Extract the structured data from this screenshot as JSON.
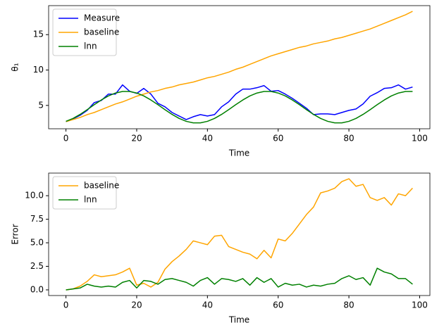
{
  "chart_data": [
    {
      "type": "line",
      "ylabel": "θ₁",
      "xlabel": "Time",
      "x": [
        0,
        2,
        4,
        6,
        8,
        10,
        12,
        14,
        16,
        18,
        20,
        22,
        24,
        26,
        28,
        30,
        32,
        34,
        36,
        38,
        40,
        42,
        44,
        46,
        48,
        50,
        52,
        54,
        56,
        58,
        60,
        62,
        64,
        66,
        68,
        70,
        72,
        74,
        76,
        78,
        80,
        82,
        84,
        86,
        88,
        90,
        92,
        94,
        96,
        98
      ],
      "series": [
        {
          "name": "Measure",
          "color": "#0000ff",
          "values": [
            2.7,
            3.1,
            3.6,
            4.3,
            5.4,
            5.7,
            6.6,
            6.6,
            7.9,
            7.0,
            6.7,
            7.4,
            6.6,
            5.3,
            4.8,
            4.0,
            3.5,
            3.0,
            3.4,
            3.7,
            3.5,
            3.7,
            4.8,
            5.5,
            6.6,
            7.3,
            7.3,
            7.5,
            7.8,
            7.0,
            7.1,
            6.6,
            6.0,
            5.3,
            4.6,
            3.7,
            3.8,
            3.8,
            3.7,
            4.0,
            4.3,
            4.5,
            5.2,
            6.3,
            6.8,
            7.4,
            7.5,
            7.9,
            7.3,
            7.6
          ]
        },
        {
          "name": "baseline",
          "color": "#ffa500",
          "values": [
            2.7,
            3.0,
            3.3,
            3.7,
            4.0,
            4.4,
            4.8,
            5.2,
            5.5,
            5.9,
            6.3,
            6.6,
            6.9,
            7.1,
            7.4,
            7.6,
            7.9,
            8.1,
            8.3,
            8.6,
            8.9,
            9.1,
            9.4,
            9.7,
            10.1,
            10.4,
            10.8,
            11.2,
            11.6,
            12.0,
            12.3,
            12.6,
            12.9,
            13.2,
            13.4,
            13.7,
            13.9,
            14.1,
            14.4,
            14.6,
            14.9,
            15.2,
            15.5,
            15.8,
            16.2,
            16.6,
            17.0,
            17.4,
            17.8,
            18.3
          ]
        },
        {
          "name": "lnn",
          "color": "#008000",
          "values": [
            2.75,
            3.16,
            3.73,
            4.4,
            5.1,
            5.77,
            6.34,
            6.75,
            6.97,
            6.97,
            6.75,
            6.34,
            5.77,
            5.1,
            4.4,
            3.73,
            3.16,
            2.75,
            2.53,
            2.53,
            2.75,
            3.16,
            3.73,
            4.4,
            5.1,
            5.77,
            6.34,
            6.75,
            6.97,
            6.97,
            6.75,
            6.34,
            5.77,
            5.1,
            4.4,
            3.73,
            3.16,
            2.75,
            2.53,
            2.53,
            2.75,
            3.16,
            3.73,
            4.4,
            5.1,
            5.77,
            6.34,
            6.75,
            6.97,
            6.97
          ]
        }
      ],
      "xlim": [
        -4.9,
        102.9
      ],
      "xticks": [
        0,
        20,
        40,
        60,
        80,
        100
      ],
      "ylim": [
        1.7,
        19.1
      ],
      "yticks": [
        5,
        10,
        15
      ],
      "legend": "upper-left"
    },
    {
      "type": "line",
      "ylabel": "Error",
      "xlabel": "Time",
      "x": [
        0,
        2,
        4,
        6,
        8,
        10,
        12,
        14,
        16,
        18,
        20,
        22,
        24,
        26,
        28,
        30,
        32,
        34,
        36,
        38,
        40,
        42,
        44,
        46,
        48,
        50,
        52,
        54,
        56,
        58,
        60,
        62,
        64,
        66,
        68,
        70,
        72,
        74,
        76,
        78,
        80,
        82,
        84,
        86,
        88,
        90,
        92,
        94,
        96,
        98
      ],
      "series": [
        {
          "name": "baseline",
          "color": "#ffa500",
          "values": [
            0.0,
            0.1,
            0.4,
            0.9,
            1.6,
            1.4,
            1.5,
            1.6,
            1.9,
            2.3,
            0.5,
            0.7,
            0.3,
            0.8,
            2.2,
            3.0,
            3.6,
            4.3,
            5.2,
            5.0,
            4.8,
            5.7,
            5.8,
            4.6,
            4.3,
            4.0,
            3.8,
            3.3,
            4.2,
            3.4,
            5.4,
            5.2,
            6.0,
            7.0,
            8.0,
            8.8,
            10.3,
            10.5,
            10.8,
            11.5,
            11.8,
            11.0,
            11.2,
            9.8,
            9.5,
            9.8,
            9.0,
            10.2,
            10.0,
            10.8
          ]
        },
        {
          "name": "lnn",
          "color": "#008000",
          "values": [
            0.0,
            0.1,
            0.2,
            0.6,
            0.4,
            0.3,
            0.4,
            0.3,
            0.8,
            1.0,
            0.2,
            1.0,
            0.9,
            0.6,
            1.1,
            1.2,
            1.0,
            0.8,
            0.4,
            1.0,
            1.3,
            0.6,
            1.2,
            1.1,
            0.9,
            1.2,
            0.5,
            1.3,
            0.8,
            1.2,
            0.3,
            0.7,
            0.5,
            0.6,
            0.3,
            0.5,
            0.4,
            0.6,
            0.7,
            1.2,
            1.5,
            1.1,
            1.3,
            0.5,
            2.3,
            1.9,
            1.7,
            1.2,
            1.2,
            0.6
          ]
        }
      ],
      "xlim": [
        -4.9,
        102.9
      ],
      "xticks": [
        0,
        20,
        40,
        60,
        80,
        100
      ],
      "ylim": [
        -0.6,
        12.4
      ],
      "yticks": [
        {
          "value": 0,
          "label": "0.0"
        },
        2.5,
        {
          "value": 5,
          "label": "5.0"
        },
        7.5,
        {
          "value": 10,
          "label": "10.0"
        }
      ],
      "legend": "upper-left"
    }
  ]
}
